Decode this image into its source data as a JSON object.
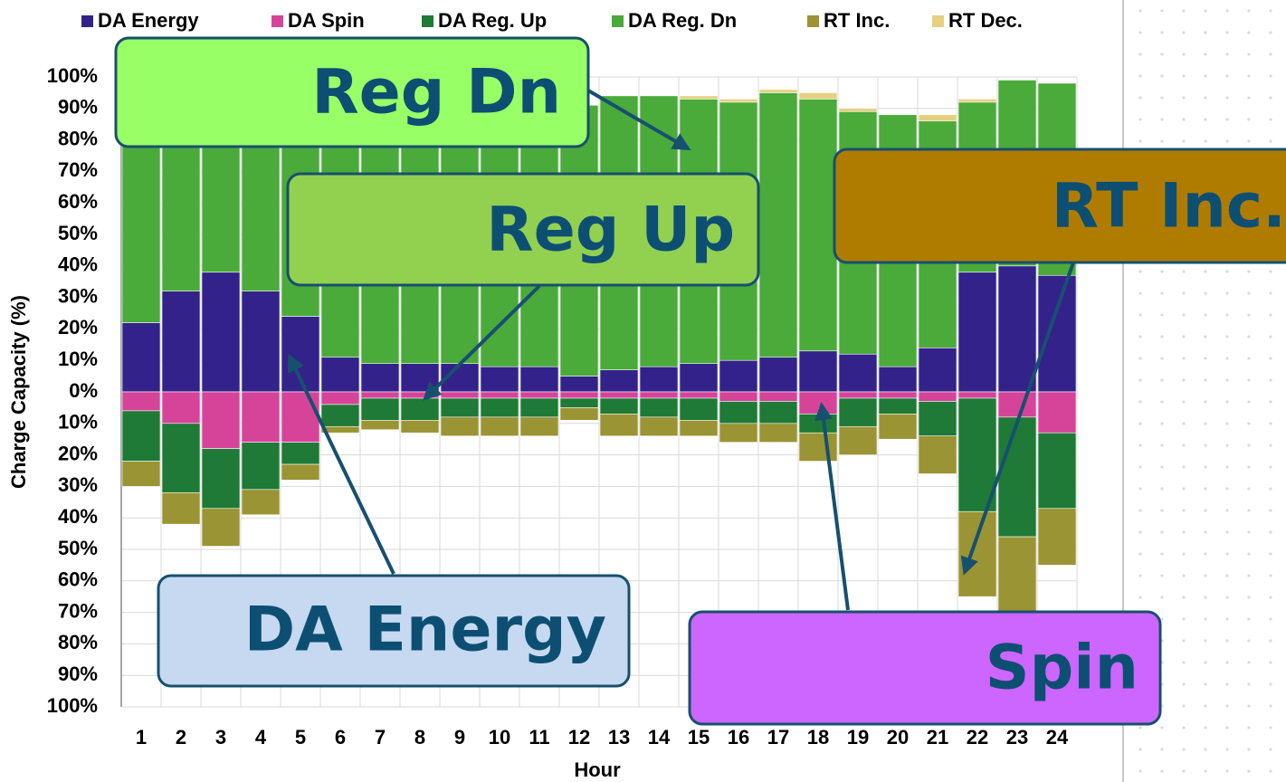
{
  "chart_data": {
    "type": "bar",
    "stacked": true,
    "x_label": "Hour",
    "y_label": "Charge Capacity (%)",
    "categories": [
      "1",
      "2",
      "3",
      "4",
      "5",
      "6",
      "7",
      "8",
      "9",
      "10",
      "11",
      "12",
      "13",
      "14",
      "15",
      "16",
      "17",
      "18",
      "19",
      "20",
      "21",
      "22",
      "23",
      "24"
    ],
    "series": [
      {
        "name": "DA Energy",
        "color": "#33228a",
        "values": [
          22,
          32,
          38,
          32,
          24,
          11,
          9,
          9,
          9,
          8,
          8,
          5,
          7,
          8,
          9,
          10,
          11,
          13,
          12,
          8,
          14,
          38,
          40,
          37
        ]
      },
      {
        "name": "DA Spin",
        "color": "#d6449a",
        "values": [
          -6,
          -10,
          -18,
          -16,
          -16,
          -4,
          -2,
          -2,
          -2,
          -2,
          -2,
          -2,
          -2,
          -2,
          -2,
          -3,
          -3,
          -7,
          -2,
          -2,
          -3,
          -2,
          -8,
          -13
        ]
      },
      {
        "name": "DA Reg. Up",
        "color": "#1e7a36",
        "values": [
          -16,
          -22,
          -19,
          -15,
          -7,
          -7,
          -7,
          -7,
          -6,
          -6,
          -6,
          -3,
          -5,
          -6,
          -7,
          -7,
          -7,
          -6,
          -9,
          -5,
          -11,
          -36,
          -38,
          -24
        ]
      },
      {
        "name": "DA Reg. Dn",
        "color": "#4aaa3a",
        "values": [
          78,
          68,
          62,
          68,
          76,
          79,
          81,
          81,
          81,
          82,
          82,
          86,
          87,
          86,
          84,
          82,
          84,
          80,
          77,
          80,
          72,
          54,
          59,
          61
        ]
      },
      {
        "name": "RT Inc.",
        "color": "#9a9434",
        "values": [
          -8,
          -10,
          -12,
          -8,
          -5,
          -2,
          -3,
          -4,
          -6,
          -6,
          -6,
          -4,
          -7,
          -6,
          -5,
          -6,
          -6,
          -9,
          -9,
          -8,
          -12,
          -27,
          -26,
          -18
        ]
      },
      {
        "name": "RT Dec.",
        "color": "#e6d080",
        "values": [
          0,
          0,
          0,
          0,
          0,
          0,
          0,
          0,
          0,
          0,
          0,
          0,
          0,
          0,
          1,
          1,
          1,
          2,
          1,
          0,
          2,
          1,
          0,
          0
        ]
      }
    ],
    "ylim": [
      -100,
      100
    ],
    "yticks": [
      {
        "value": 100,
        "label": "100%"
      },
      {
        "value": 90,
        "label": "90%"
      },
      {
        "value": 80,
        "label": "80%"
      },
      {
        "value": 70,
        "label": "70%"
      },
      {
        "value": 60,
        "label": "60%"
      },
      {
        "value": 50,
        "label": "50%"
      },
      {
        "value": 40,
        "label": "40%"
      },
      {
        "value": 30,
        "label": "30%"
      },
      {
        "value": 20,
        "label": "20%"
      },
      {
        "value": 10,
        "label": "10%"
      },
      {
        "value": 0,
        "label": "0%"
      },
      {
        "value": -10,
        "label": "10%"
      },
      {
        "value": -20,
        "label": "20%"
      },
      {
        "value": -30,
        "label": "30%"
      },
      {
        "value": -40,
        "label": "40%"
      },
      {
        "value": -50,
        "label": "50%"
      },
      {
        "value": -60,
        "label": "60%"
      },
      {
        "value": -70,
        "label": "70%"
      },
      {
        "value": -80,
        "label": "80%"
      },
      {
        "value": -90,
        "label": "90%"
      },
      {
        "value": -100,
        "label": "100%"
      }
    ],
    "grid": true,
    "legend": "top",
    "annotations": [
      "Reg Dn",
      "Reg Up",
      "RT Inc.",
      "DA Energy",
      "Spin"
    ]
  }
}
